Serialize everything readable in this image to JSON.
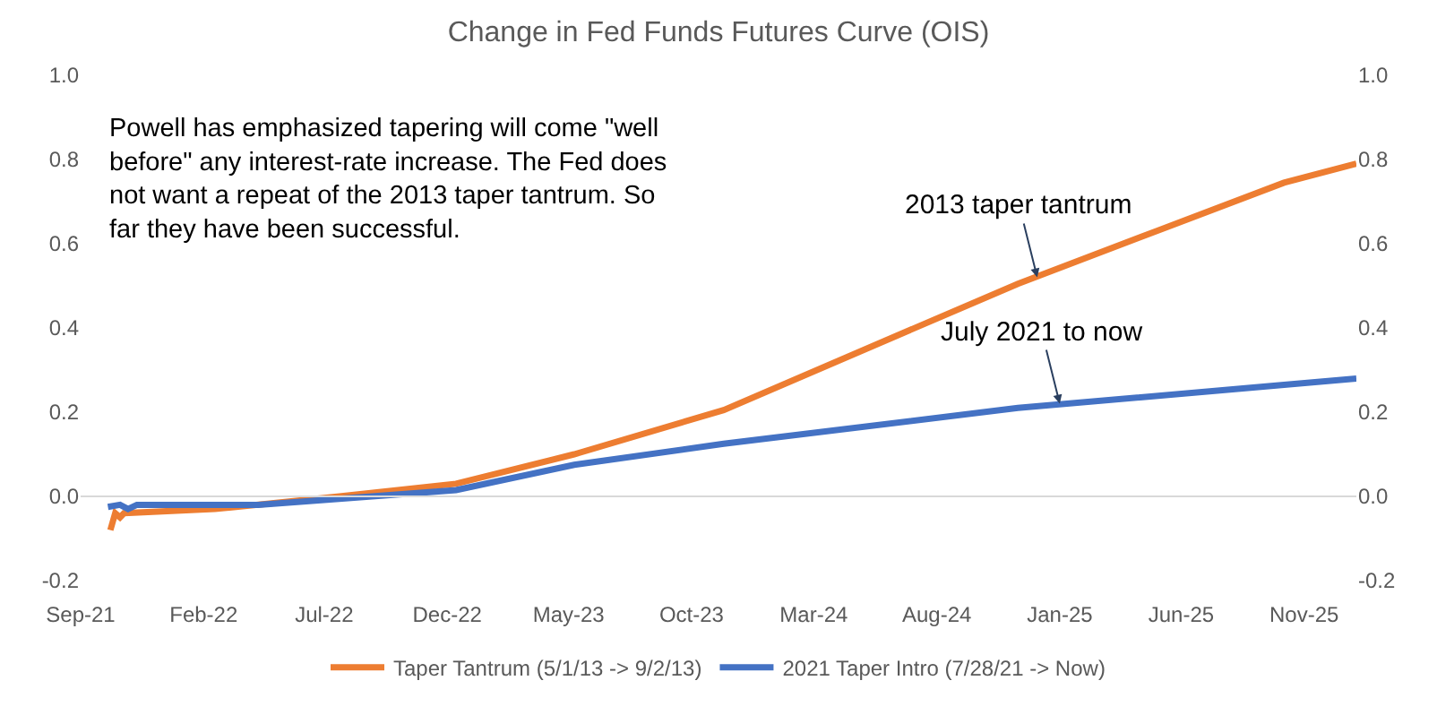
{
  "chart_data": {
    "type": "line",
    "title": "Change in Fed Funds Futures Curve (OIS)",
    "series": [
      {
        "name": "Taper Tantrum (5/1/13 -> 9/2/13)",
        "color": "#ed7d31",
        "x": [
          "2021-10-08",
          "2021-10-14",
          "2021-10-20",
          "2021-10-25",
          "2022-02-15",
          "2022-07-20",
          "2022-12-12",
          "2023-05-08",
          "2023-11-10",
          "2024-11-10",
          "2025-10-07",
          "2026-01-05"
        ],
        "values": [
          -0.08,
          -0.04,
          -0.05,
          -0.04,
          -0.03,
          0.0,
          0.03,
          0.1,
          0.205,
          0.505,
          0.745,
          0.79
        ]
      },
      {
        "name": "2021 Taper Intro (7/28/21 -> Now)",
        "color": "#4472c4",
        "x": [
          "2021-10-05",
          "2021-10-20",
          "2021-10-30",
          "2021-11-10",
          "2022-04-10",
          "2022-12-12",
          "2023-05-08",
          "2023-11-10",
          "2024-11-10",
          "2025-10-07",
          "2026-01-05"
        ],
        "values": [
          -0.025,
          -0.02,
          -0.03,
          -0.02,
          -0.02,
          0.015,
          0.075,
          0.125,
          0.21,
          0.265,
          0.28
        ]
      }
    ],
    "xlim": [
      "2021-09-01",
      "2026-01-05"
    ],
    "xticks": [
      {
        "value": "2021-09-01",
        "label": "Sep-21"
      },
      {
        "value": "2022-02-01",
        "label": "Feb-22"
      },
      {
        "value": "2022-07-01",
        "label": "Jul-22"
      },
      {
        "value": "2022-12-01",
        "label": "Dec-22"
      },
      {
        "value": "2023-05-01",
        "label": "May-23"
      },
      {
        "value": "2023-10-01",
        "label": "Oct-23"
      },
      {
        "value": "2024-03-01",
        "label": "Mar-24"
      },
      {
        "value": "2024-08-01",
        "label": "Aug-24"
      },
      {
        "value": "2025-01-01",
        "label": "Jan-25"
      },
      {
        "value": "2025-06-01",
        "label": "Jun-25"
      },
      {
        "value": "2025-11-01",
        "label": "Nov-25"
      }
    ],
    "ylim": [
      -0.2,
      1.0
    ],
    "yticks": [
      {
        "value": -0.2,
        "label": "-0.2"
      },
      {
        "value": 0,
        "label": "0.0"
      },
      {
        "value": 0.2,
        "label": "0.2"
      },
      {
        "value": 0.4,
        "label": "0.4"
      },
      {
        "value": 0.6,
        "label": "0.6"
      },
      {
        "value": 0.8,
        "label": "0.8"
      },
      {
        "value": 1.0,
        "label": "1.0"
      }
    ],
    "y2lim": [
      -0.2,
      1.0
    ],
    "y2ticks": [
      {
        "value": -0.2,
        "label": "-0.2"
      },
      {
        "value": 0,
        "label": "0.0"
      },
      {
        "value": 0.2,
        "label": "0.2"
      },
      {
        "value": 0.4,
        "label": "0.4"
      },
      {
        "value": 0.6,
        "label": "0.6"
      },
      {
        "value": 0.8,
        "label": "0.8"
      },
      {
        "value": 1.0,
        "label": "1.0"
      }
    ],
    "ref_lines": [
      {
        "axis": "y",
        "value": 0,
        "color": "#d9d9d9"
      }
    ],
    "annotations": [
      "Powell has emphasized tapering will come \"well before\" any interest-rate increase. The Fed does not want a repeat of the 2013 taper tantrum. So far they have been successful.",
      {
        "text": "2013 taper tantrum",
        "x": "2024-12-04",
        "y": 0.52
      },
      {
        "text": "July 2021 to now",
        "x": "2025-01-01",
        "y": 0.22
      }
    ],
    "legend": "bottom",
    "marker": "none",
    "line_style": "solid"
  }
}
